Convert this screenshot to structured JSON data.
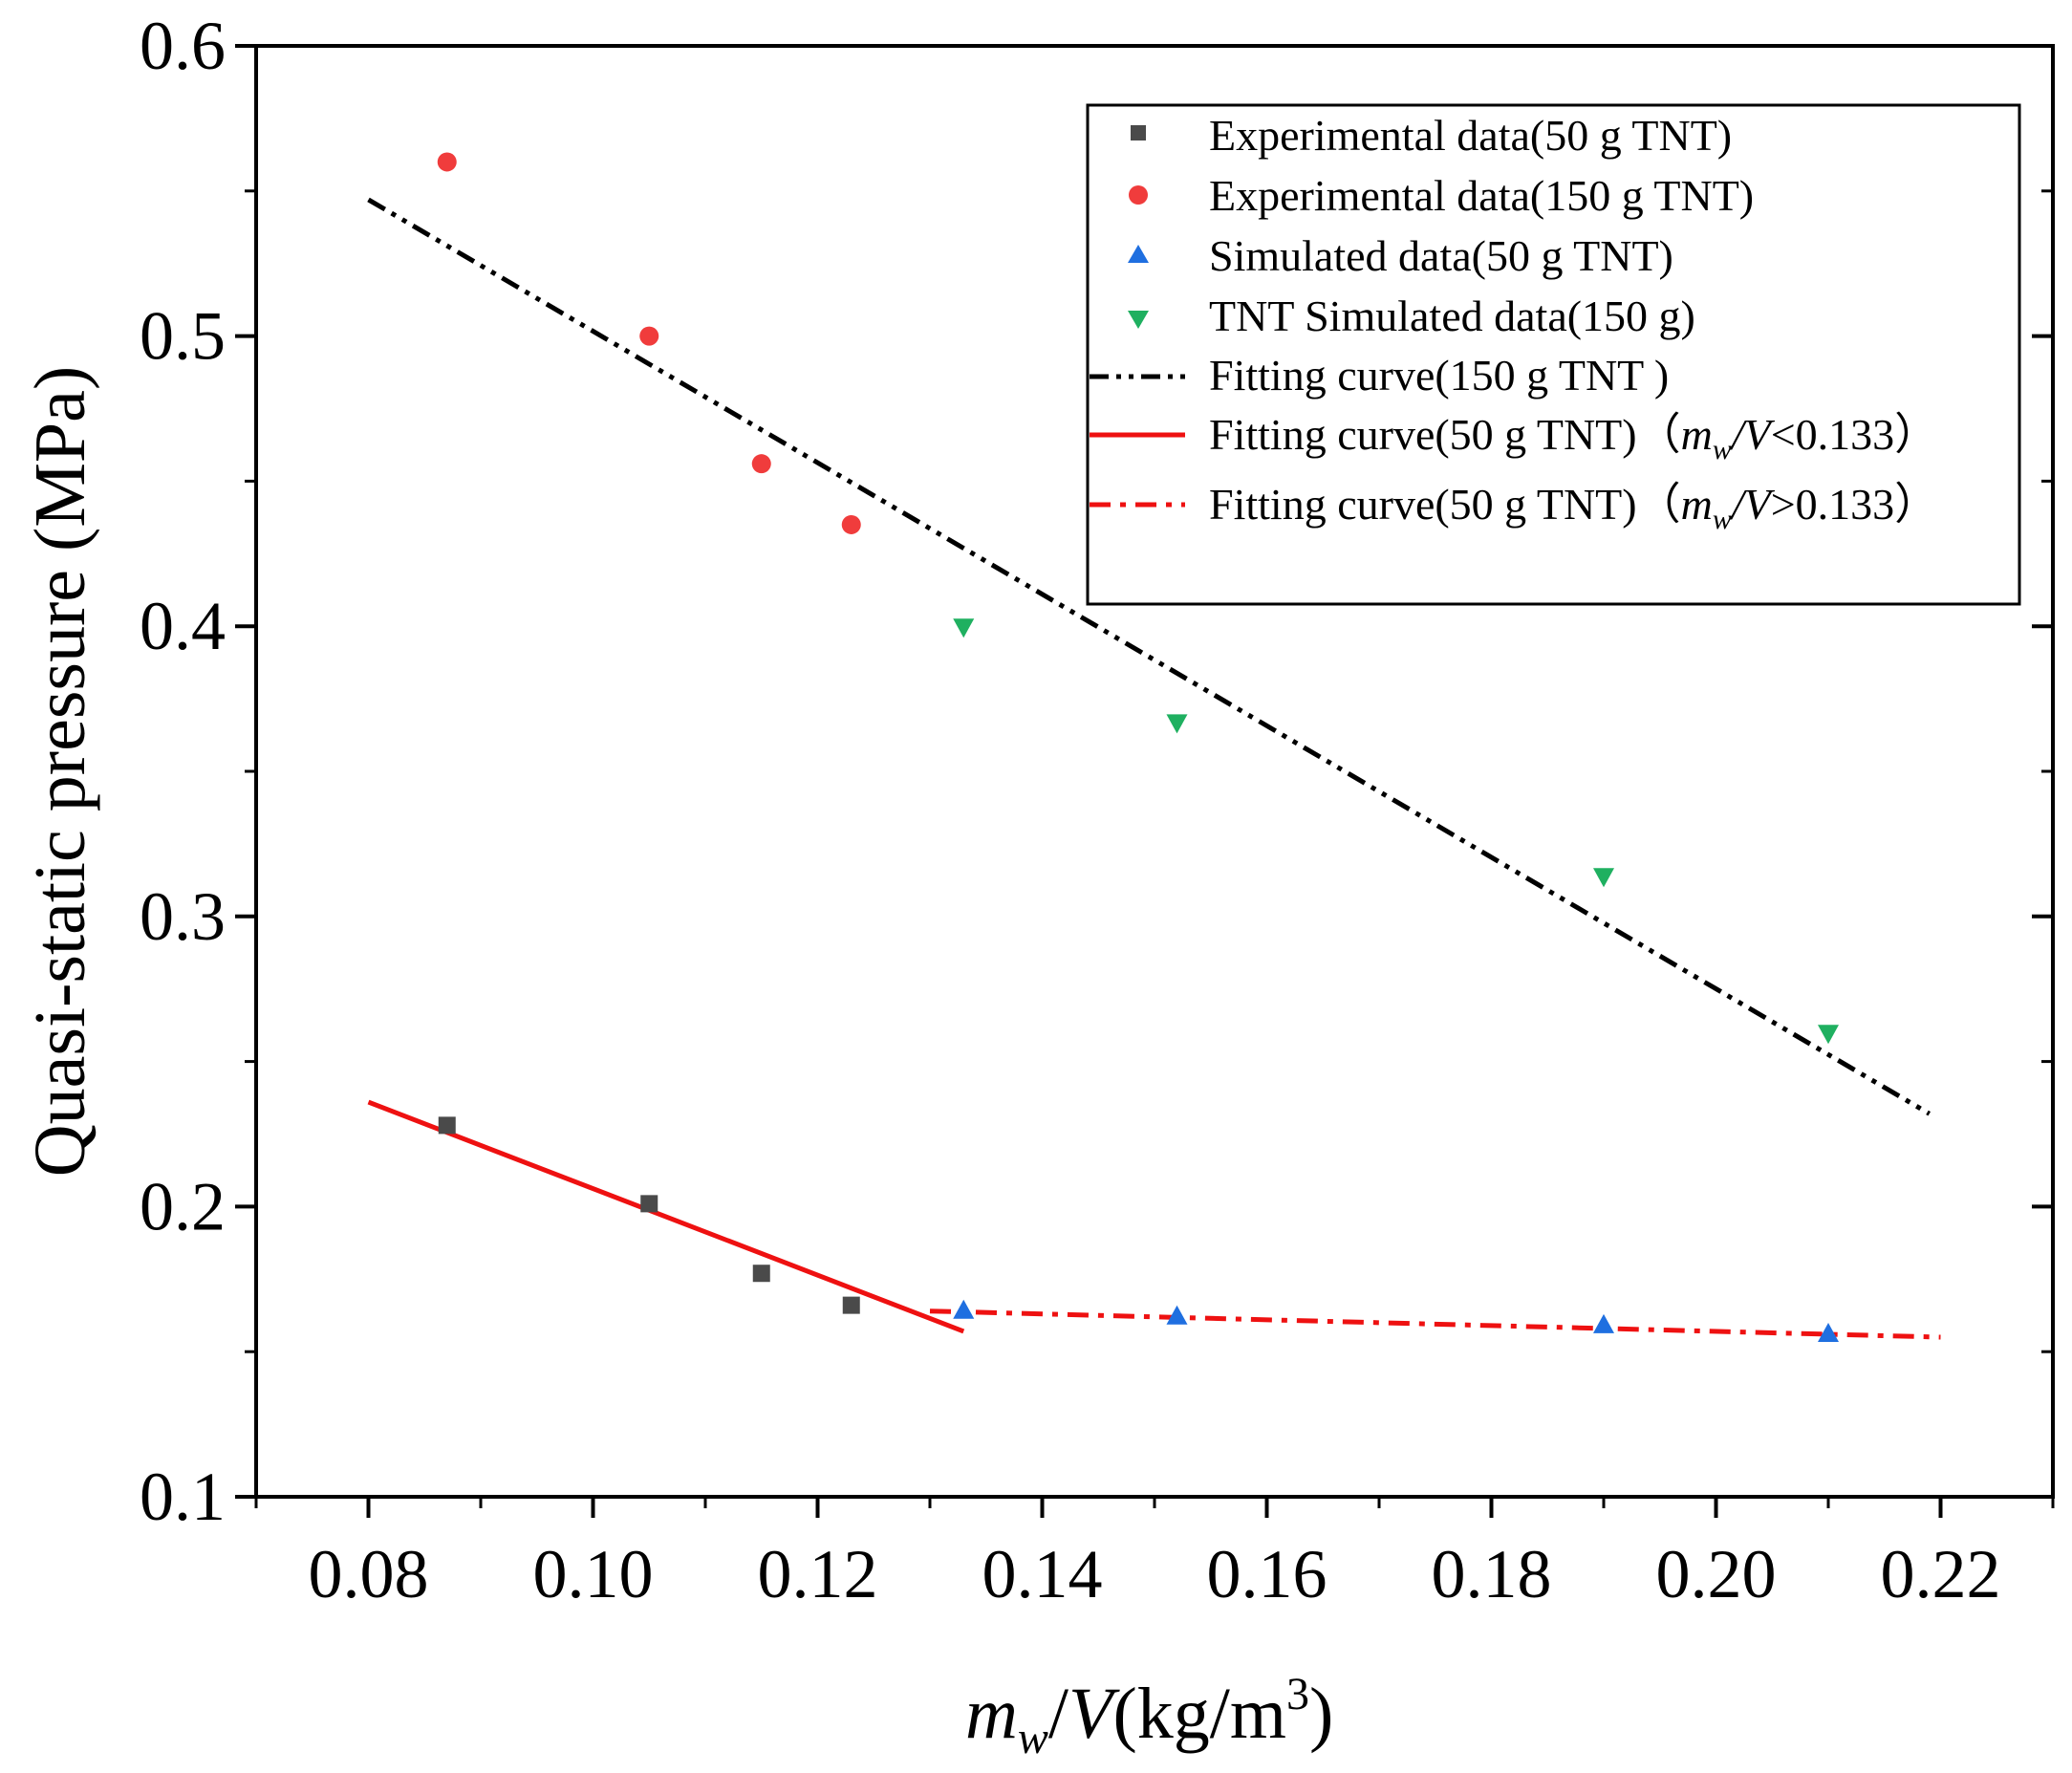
{
  "chart_data": {
    "type": "scatter",
    "title": "",
    "xlabel_parts": {
      "m": "m",
      "sub": "w",
      "rest": "/",
      "V": "V",
      "units": "(kg/m",
      "sup": "3",
      "close": ")"
    },
    "ylabel": "Quasi-static pressure (MPa)",
    "xlim": [
      0.07,
      0.23
    ],
    "ylim": [
      0.1,
      0.6
    ],
    "x_ticks": [
      0.08,
      0.1,
      0.12,
      0.14,
      0.16,
      0.18,
      0.2,
      0.22
    ],
    "x_tick_labels": [
      "0.08",
      "0.10",
      "0.12",
      "0.14",
      "0.16",
      "0.18",
      "0.20",
      "0.22"
    ],
    "y_ticks": [
      0.1,
      0.2,
      0.3,
      0.4,
      0.5,
      0.6
    ],
    "y_tick_labels": [
      "0.1",
      "0.2",
      "0.3",
      "0.4",
      "0.5",
      "0.6"
    ],
    "legend_position": "top-right",
    "series": [
      {
        "name": "Experimental data(50 g TNT)",
        "kind": "scatter",
        "marker": "square",
        "color": "#4a4a4a",
        "x": [
          0.087,
          0.105,
          0.115,
          0.123
        ],
        "y": [
          0.228,
          0.201,
          0.177,
          0.166
        ]
      },
      {
        "name": "Experimental data(150 g TNT)",
        "kind": "scatter",
        "marker": "circle",
        "color": "#f03c3c",
        "x": [
          0.087,
          0.105,
          0.115,
          0.123
        ],
        "y": [
          0.56,
          0.5,
          0.456,
          0.435
        ]
      },
      {
        "name": "Simulated data(50 g TNT)",
        "kind": "scatter",
        "marker": "triangle-up",
        "color": "#1f6fe0",
        "x": [
          0.133,
          0.152,
          0.19,
          0.21
        ],
        "y": [
          0.164,
          0.162,
          0.159,
          0.156
        ]
      },
      {
        "name": "TNT Simulated data(150 g)",
        "kind": "scatter",
        "marker": "triangle-down",
        "color": "#1fb060",
        "x": [
          0.133,
          0.152,
          0.19,
          0.21
        ],
        "y": [
          0.4,
          0.367,
          0.314,
          0.26
        ]
      },
      {
        "name": "Fitting curve(150 g TNT )",
        "kind": "line",
        "dash": "dashdotdot",
        "color": "#000000",
        "x": [
          0.08,
          0.219
        ],
        "y": [
          0.547,
          0.232
        ]
      },
      {
        "name_prefix": "Fitting curve(50 g TNT)（",
        "name_var_m": "m",
        "name_var_sub": "w",
        "name_var_V": "/V",
        "name_suffix": "<0.133）",
        "kind": "line",
        "dash": "solid",
        "color": "#ee1111",
        "x": [
          0.08,
          0.133
        ],
        "y": [
          0.236,
          0.157
        ]
      },
      {
        "name_prefix": "Fitting curve(50 g TNT)（",
        "name_var_m": "m",
        "name_var_sub": "w",
        "name_var_V": "/V",
        "name_suffix": ">0.133）",
        "kind": "line",
        "dash": "dashdot",
        "color": "#ee1111",
        "x": [
          0.13,
          0.22
        ],
        "y": [
          0.164,
          0.155
        ]
      }
    ]
  }
}
